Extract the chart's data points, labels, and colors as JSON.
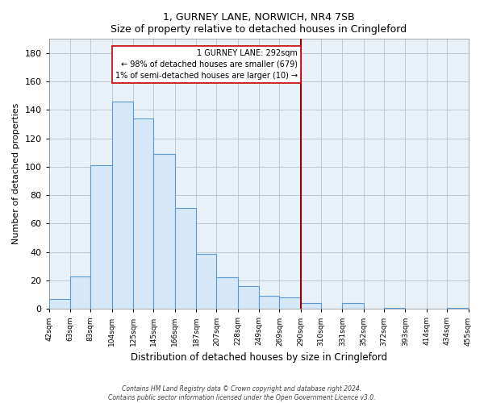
{
  "title": "1, GURNEY LANE, NORWICH, NR4 7SB",
  "subtitle": "Size of property relative to detached houses in Cringleford",
  "xlabel": "Distribution of detached houses by size in Cringleford",
  "ylabel": "Number of detached properties",
  "footer_lines": [
    "Contains HM Land Registry data © Crown copyright and database right 2024.",
    "Contains public sector information licensed under the Open Government Licence v3.0."
  ],
  "bin_edges": [
    42,
    63,
    83,
    104,
    125,
    145,
    166,
    187,
    207,
    228,
    249,
    269,
    290,
    310,
    331,
    352,
    372,
    393,
    414,
    434,
    455
  ],
  "bar_heights": [
    7,
    23,
    101,
    146,
    134,
    109,
    71,
    39,
    22,
    16,
    9,
    8,
    4,
    0,
    4,
    0,
    1,
    0,
    0,
    1
  ],
  "bar_color": "#d6e8f7",
  "bar_edge_color": "#5b9bd5",
  "property_line_x": 290,
  "property_line_color": "#9b0000",
  "annotation_title": "1 GURNEY LANE: 292sqm",
  "annotation_line1": "← 98% of detached houses are smaller (679)",
  "annotation_line2": "1% of semi-detached houses are larger (10) →",
  "annotation_box_edge_color": "#cc0000",
  "annotation_box_face_color": "#ffffff",
  "ylim": [
    0,
    190
  ],
  "xlim": [
    42,
    455
  ],
  "background_color": "#ffffff",
  "plot_bg_color": "#e8f0f8",
  "grid_color": "#c0c8d0"
}
